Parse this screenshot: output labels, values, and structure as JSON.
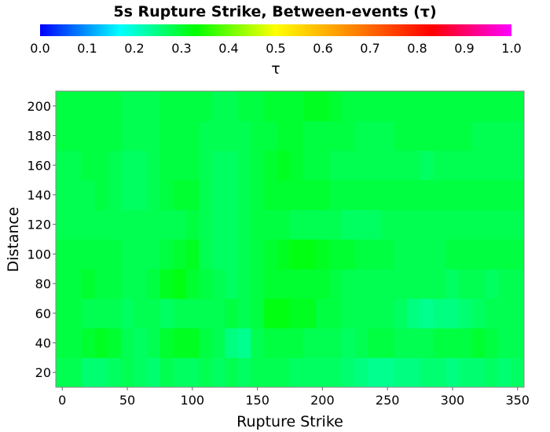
{
  "chart_data": {
    "type": "heatmap",
    "title": "5s Rupture Strike, Between-events (τ)",
    "xlabel": "Rupture Strike",
    "ylabel": "Distance",
    "xlim": [
      -5,
      355
    ],
    "ylim": [
      10,
      210
    ],
    "x_ticks": [
      0,
      50,
      100,
      150,
      200,
      250,
      300,
      350
    ],
    "y_ticks": [
      20,
      40,
      60,
      80,
      100,
      120,
      140,
      160,
      180,
      200
    ],
    "colorbar": {
      "label": "τ",
      "range": [
        0.0,
        1.0
      ],
      "ticks": [
        0.0,
        0.1,
        0.2,
        0.3,
        0.4,
        0.5,
        0.6,
        0.7,
        0.8,
        0.9,
        1.0
      ],
      "tick_labels": [
        "0.0",
        "0.1",
        "0.2",
        "0.3",
        "0.4",
        "0.5",
        "0.6",
        "0.7",
        "0.8",
        "0.9",
        "1.0"
      ],
      "stops": [
        [
          0.0,
          "#0000ff"
        ],
        [
          0.17,
          "#00ffff"
        ],
        [
          0.33,
          "#00ff00"
        ],
        [
          0.5,
          "#ffff00"
        ],
        [
          0.67,
          "#ff8000"
        ],
        [
          0.83,
          "#ff0000"
        ],
        [
          1.0,
          "#ff00ff"
        ]
      ]
    },
    "x": [
      0,
      10,
      20,
      30,
      40,
      50,
      60,
      70,
      80,
      90,
      100,
      110,
      120,
      130,
      140,
      150,
      160,
      170,
      180,
      190,
      200,
      210,
      220,
      230,
      240,
      250,
      260,
      270,
      280,
      290,
      300,
      310,
      320,
      330,
      340,
      350
    ],
    "y": [
      20,
      40,
      60,
      80,
      100,
      120,
      140,
      160,
      180,
      200
    ],
    "values": [
      [
        0.28,
        0.28,
        0.26,
        0.26,
        0.27,
        0.28,
        0.27,
        0.26,
        0.28,
        0.27,
        0.27,
        0.28,
        0.27,
        0.28,
        0.27,
        0.28,
        0.28,
        0.28,
        0.27,
        0.27,
        0.27,
        0.27,
        0.26,
        0.25,
        0.24,
        0.24,
        0.25,
        0.25,
        0.26,
        0.26,
        0.25,
        0.26,
        0.26,
        0.27,
        0.26,
        0.27
      ],
      [
        0.29,
        0.29,
        0.3,
        0.31,
        0.3,
        0.28,
        0.27,
        0.28,
        0.3,
        0.31,
        0.31,
        0.29,
        0.28,
        0.25,
        0.24,
        0.28,
        0.29,
        0.29,
        0.29,
        0.28,
        0.28,
        0.28,
        0.27,
        0.28,
        0.29,
        0.29,
        0.28,
        0.28,
        0.28,
        0.29,
        0.29,
        0.29,
        0.3,
        0.29,
        0.28,
        0.28
      ],
      [
        0.29,
        0.29,
        0.28,
        0.28,
        0.28,
        0.27,
        0.28,
        0.28,
        0.27,
        0.28,
        0.28,
        0.28,
        0.28,
        0.29,
        0.28,
        0.29,
        0.32,
        0.32,
        0.31,
        0.31,
        0.29,
        0.29,
        0.28,
        0.28,
        0.28,
        0.28,
        0.27,
        0.25,
        0.24,
        0.25,
        0.25,
        0.26,
        0.27,
        0.28,
        0.28,
        0.28
      ],
      [
        0.29,
        0.29,
        0.3,
        0.29,
        0.29,
        0.28,
        0.28,
        0.29,
        0.31,
        0.32,
        0.3,
        0.29,
        0.28,
        0.27,
        0.28,
        0.29,
        0.3,
        0.3,
        0.3,
        0.3,
        0.3,
        0.29,
        0.28,
        0.28,
        0.28,
        0.28,
        0.28,
        0.28,
        0.28,
        0.28,
        0.27,
        0.28,
        0.28,
        0.27,
        0.28,
        0.28
      ],
      [
        0.29,
        0.29,
        0.29,
        0.29,
        0.29,
        0.28,
        0.28,
        0.28,
        0.29,
        0.3,
        0.31,
        0.28,
        0.27,
        0.27,
        0.28,
        0.29,
        0.3,
        0.31,
        0.32,
        0.32,
        0.31,
        0.3,
        0.3,
        0.29,
        0.29,
        0.29,
        0.28,
        0.28,
        0.28,
        0.28,
        0.29,
        0.29,
        0.29,
        0.29,
        0.29,
        0.29
      ],
      [
        0.28,
        0.28,
        0.28,
        0.28,
        0.28,
        0.28,
        0.28,
        0.28,
        0.28,
        0.28,
        0.29,
        0.28,
        0.27,
        0.27,
        0.28,
        0.29,
        0.29,
        0.29,
        0.28,
        0.28,
        0.28,
        0.28,
        0.27,
        0.27,
        0.27,
        0.28,
        0.28,
        0.28,
        0.28,
        0.28,
        0.28,
        0.28,
        0.28,
        0.28,
        0.28,
        0.28
      ],
      [
        0.28,
        0.28,
        0.28,
        0.29,
        0.28,
        0.27,
        0.27,
        0.28,
        0.29,
        0.3,
        0.3,
        0.28,
        0.27,
        0.27,
        0.28,
        0.29,
        0.3,
        0.3,
        0.3,
        0.3,
        0.3,
        0.29,
        0.29,
        0.29,
        0.29,
        0.29,
        0.29,
        0.29,
        0.29,
        0.29,
        0.29,
        0.29,
        0.29,
        0.29,
        0.29,
        0.29
      ],
      [
        0.28,
        0.28,
        0.29,
        0.29,
        0.28,
        0.27,
        0.27,
        0.28,
        0.29,
        0.29,
        0.29,
        0.28,
        0.27,
        0.27,
        0.28,
        0.29,
        0.3,
        0.31,
        0.3,
        0.29,
        0.29,
        0.28,
        0.28,
        0.28,
        0.28,
        0.28,
        0.28,
        0.28,
        0.27,
        0.28,
        0.28,
        0.28,
        0.28,
        0.28,
        0.28,
        0.28
      ],
      [
        0.29,
        0.29,
        0.29,
        0.29,
        0.29,
        0.28,
        0.28,
        0.28,
        0.29,
        0.29,
        0.29,
        0.28,
        0.28,
        0.28,
        0.28,
        0.29,
        0.29,
        0.3,
        0.3,
        0.29,
        0.29,
        0.29,
        0.29,
        0.28,
        0.28,
        0.28,
        0.29,
        0.29,
        0.29,
        0.29,
        0.29,
        0.29,
        0.28,
        0.28,
        0.28,
        0.28
      ],
      [
        0.29,
        0.29,
        0.29,
        0.29,
        0.29,
        0.28,
        0.28,
        0.28,
        0.29,
        0.29,
        0.29,
        0.29,
        0.28,
        0.28,
        0.29,
        0.29,
        0.3,
        0.3,
        0.3,
        0.31,
        0.31,
        0.3,
        0.29,
        0.29,
        0.29,
        0.29,
        0.29,
        0.29,
        0.29,
        0.29,
        0.29,
        0.29,
        0.29,
        0.29,
        0.29,
        0.29
      ]
    ]
  }
}
